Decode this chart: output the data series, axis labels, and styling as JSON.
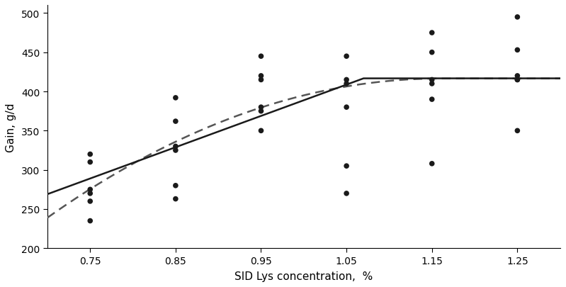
{
  "scatter_x": [
    0.75,
    0.75,
    0.75,
    0.75,
    0.75,
    0.75,
    0.85,
    0.85,
    0.85,
    0.85,
    0.85,
    0.85,
    0.95,
    0.95,
    0.95,
    0.95,
    0.95,
    0.95,
    1.05,
    1.05,
    1.05,
    1.05,
    1.05,
    1.05,
    1.15,
    1.15,
    1.15,
    1.15,
    1.15,
    1.15,
    1.25,
    1.25,
    1.25,
    1.25,
    1.25,
    1.25
  ],
  "scatter_y": [
    235,
    260,
    270,
    275,
    310,
    320,
    263,
    280,
    325,
    330,
    362,
    392,
    350,
    375,
    380,
    415,
    420,
    445,
    270,
    305,
    380,
    410,
    415,
    445,
    308,
    390,
    410,
    415,
    450,
    475,
    350,
    415,
    415,
    420,
    453,
    495
  ],
  "broken_line_plateau": 416.7,
  "broken_line_slope": 399.2,
  "broken_line_breakpoint": 1.07,
  "quad_plateau": 416.5,
  "quad_coeff": 839.0,
  "quad_breakpoint": 1.16,
  "xlim": [
    0.7,
    1.3
  ],
  "ylim": [
    200,
    510
  ],
  "xticks": [
    0.75,
    0.85,
    0.95,
    1.05,
    1.15,
    1.25
  ],
  "yticks": [
    200,
    250,
    300,
    350,
    400,
    450,
    500
  ],
  "xlabel": "SID Lys concentration,  %",
  "ylabel": "Gain, g/d",
  "background_color": "#ffffff",
  "scatter_color": "#1a1a1a",
  "broken_line_color": "#1a1a1a",
  "quad_line_color": "#555555",
  "scatter_size": 30,
  "figsize": [
    7.99,
    4.06
  ],
  "dpi": 100
}
